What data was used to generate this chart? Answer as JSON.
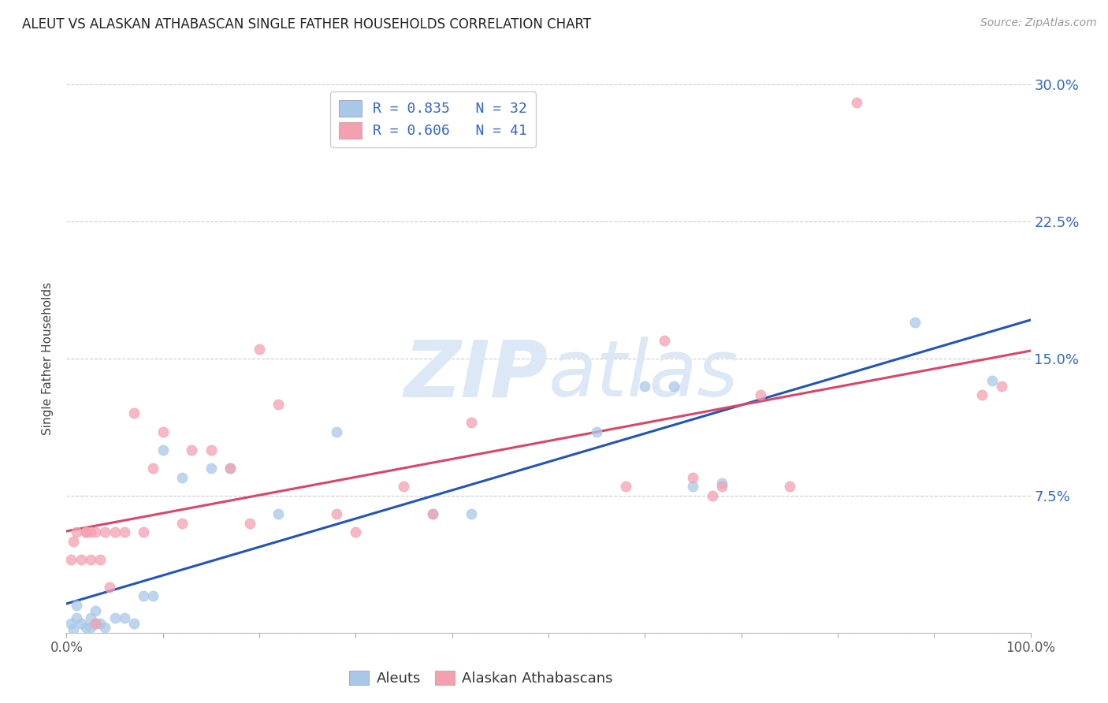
{
  "title": "ALEUT VS ALASKAN ATHABASCAN SINGLE FATHER HOUSEHOLDS CORRELATION CHART",
  "source": "Source: ZipAtlas.com",
  "ylabel": "Single Father Households",
  "xlim": [
    0,
    1.0
  ],
  "ylim": [
    0,
    0.3
  ],
  "yticks": [
    0.0,
    0.075,
    0.15,
    0.225,
    0.3
  ],
  "ytick_labels": [
    "",
    "7.5%",
    "15.0%",
    "22.5%",
    "30.0%"
  ],
  "legend_label_blue": "Aleuts",
  "legend_label_pink": "Alaskan Athabascans",
  "blue_scatter_color": "#a8c8e8",
  "pink_scatter_color": "#f4a0b0",
  "blue_line_color": "#2255bb",
  "pink_line_color": "#dd4466",
  "legend_patch_blue": "#a8c8e8",
  "legend_patch_pink": "#f4a0b0",
  "legend_text_color": "#3366cc",
  "ytick_color": "#3366cc",
  "title_color": "#222222",
  "source_color": "#999999",
  "grid_color": "#cccccc",
  "background_color": "#ffffff",
  "watermark_color": "#dce8f5",
  "aleut_x": [
    0.005,
    0.007,
    0.01,
    0.01,
    0.015,
    0.02,
    0.025,
    0.025,
    0.03,
    0.03,
    0.035,
    0.04,
    0.05,
    0.06,
    0.07,
    0.08,
    0.09,
    0.1,
    0.12,
    0.15,
    0.17,
    0.22,
    0.28,
    0.38,
    0.42,
    0.55,
    0.6,
    0.63,
    0.65,
    0.68,
    0.88,
    0.96
  ],
  "aleut_y": [
    0.005,
    0.002,
    0.008,
    0.015,
    0.005,
    0.003,
    0.008,
    0.003,
    0.005,
    0.012,
    0.005,
    0.003,
    0.008,
    0.008,
    0.005,
    0.02,
    0.02,
    0.1,
    0.085,
    0.09,
    0.09,
    0.065,
    0.11,
    0.065,
    0.065,
    0.11,
    0.135,
    0.135,
    0.08,
    0.082,
    0.17,
    0.138
  ],
  "athabascan_x": [
    0.005,
    0.007,
    0.01,
    0.015,
    0.02,
    0.02,
    0.025,
    0.025,
    0.03,
    0.03,
    0.035,
    0.04,
    0.045,
    0.05,
    0.06,
    0.07,
    0.08,
    0.09,
    0.1,
    0.12,
    0.13,
    0.15,
    0.17,
    0.19,
    0.2,
    0.22,
    0.28,
    0.3,
    0.35,
    0.38,
    0.42,
    0.58,
    0.62,
    0.65,
    0.67,
    0.68,
    0.72,
    0.75,
    0.82,
    0.95,
    0.97
  ],
  "athabascan_y": [
    0.04,
    0.05,
    0.055,
    0.04,
    0.055,
    0.055,
    0.04,
    0.055,
    0.005,
    0.055,
    0.04,
    0.055,
    0.025,
    0.055,
    0.055,
    0.12,
    0.055,
    0.09,
    0.11,
    0.06,
    0.1,
    0.1,
    0.09,
    0.06,
    0.155,
    0.125,
    0.065,
    0.055,
    0.08,
    0.065,
    0.115,
    0.08,
    0.16,
    0.085,
    0.075,
    0.08,
    0.13,
    0.08,
    0.29,
    0.13,
    0.135
  ]
}
